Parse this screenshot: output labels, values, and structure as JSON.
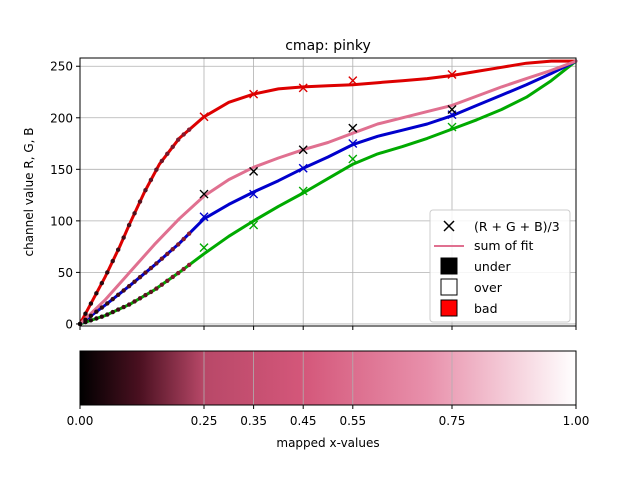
{
  "chart_data": [
    {
      "type": "line",
      "title": "cmap: pinky",
      "ylabel": "channel value R, G, B",
      "xlim": [
        0,
        1
      ],
      "ylim": [
        -2,
        258
      ],
      "grid": true,
      "x_ticks": [
        0,
        0.25,
        0.35,
        0.45,
        0.55,
        0.75,
        1
      ],
      "y_ticks": [
        0,
        50,
        100,
        150,
        200,
        250
      ],
      "colors": {
        "R": "#dd0000",
        "G": "#00aa00",
        "B": "#0000cc",
        "fit": "#e07090",
        "bad": "#ff0000",
        "under": "#000000",
        "over": "#ffffff"
      },
      "series": [
        {
          "name": "R",
          "x": [
            0,
            0.02,
            0.05,
            0.08,
            0.1,
            0.13,
            0.16,
            0.2,
            0.25,
            0.3,
            0.35,
            0.4,
            0.45,
            0.5,
            0.55,
            0.6,
            0.65,
            0.7,
            0.75,
            0.8,
            0.85,
            0.9,
            0.95,
            1.0
          ],
          "values": [
            0,
            18,
            45,
            75,
            97,
            128,
            155,
            180,
            201,
            215,
            223,
            228,
            230,
            231,
            232,
            234,
            236,
            238,
            241,
            245,
            249,
            253,
            255,
            255
          ]
        },
        {
          "name": "G",
          "x": [
            0,
            0.05,
            0.1,
            0.15,
            0.2,
            0.25,
            0.3,
            0.35,
            0.4,
            0.45,
            0.5,
            0.55,
            0.6,
            0.65,
            0.7,
            0.75,
            0.8,
            0.85,
            0.9,
            0.95,
            1.0
          ],
          "values": [
            0,
            8,
            19,
            33,
            50,
            68,
            85,
            100,
            114,
            127,
            141,
            155,
            165,
            172,
            180,
            189,
            198,
            208,
            220,
            236,
            255
          ]
        },
        {
          "name": "B",
          "x": [
            0,
            0.05,
            0.1,
            0.15,
            0.2,
            0.25,
            0.3,
            0.35,
            0.4,
            0.45,
            0.5,
            0.55,
            0.6,
            0.65,
            0.7,
            0.75,
            0.8,
            0.85,
            0.9,
            0.95,
            1.0
          ],
          "values": [
            0,
            18,
            37,
            57,
            78,
            102,
            116,
            128,
            139,
            151,
            162,
            174,
            182,
            188,
            194,
            202,
            212,
            222,
            232,
            243,
            255
          ]
        },
        {
          "name": "sum of fit",
          "x": [
            0,
            0.05,
            0.1,
            0.15,
            0.2,
            0.25,
            0.3,
            0.35,
            0.4,
            0.45,
            0.5,
            0.55,
            0.6,
            0.65,
            0.7,
            0.75,
            0.8,
            0.85,
            0.9,
            0.95,
            1.0
          ],
          "values": [
            0,
            23,
            50,
            77,
            102,
            124,
            140,
            152,
            161,
            169,
            176,
            185,
            194,
            200,
            206,
            212,
            221,
            230,
            238,
            246,
            255
          ]
        },
        {
          "name": "(R + G + B)/3",
          "type": "scatter",
          "marker": "x",
          "x": [
            0.25,
            0.35,
            0.45,
            0.55,
            0.75
          ],
          "values": [
            126,
            148,
            169,
            190,
            208
          ]
        }
      ],
      "sample_markers": {
        "x": [
          0.25,
          0.35,
          0.45,
          0.55,
          0.75
        ],
        "R": [
          201,
          223,
          229,
          236,
          242
        ],
        "G": [
          74,
          96,
          129,
          160,
          191
        ],
        "B": [
          104,
          126,
          151,
          175,
          203
        ]
      },
      "legend": {
        "position": "lower-right",
        "entries": [
          "(R + G + B)/3",
          "sum of fit",
          "under",
          "over",
          "bad"
        ]
      }
    },
    {
      "type": "heatmap",
      "colormap": "pinky",
      "xlabel": "mapped x-values",
      "x_ticks": [
        0,
        0.25,
        0.35,
        0.45,
        0.55,
        0.75,
        1
      ],
      "x_tick_labels": [
        "0.00",
        "0.25",
        "0.35",
        "0.45",
        "0.55",
        "0.75",
        "1.00"
      ],
      "gradient_stops": [
        "#000000",
        "#b84868",
        "#d4577a",
        "#e890ab",
        "#ffffff"
      ]
    }
  ]
}
